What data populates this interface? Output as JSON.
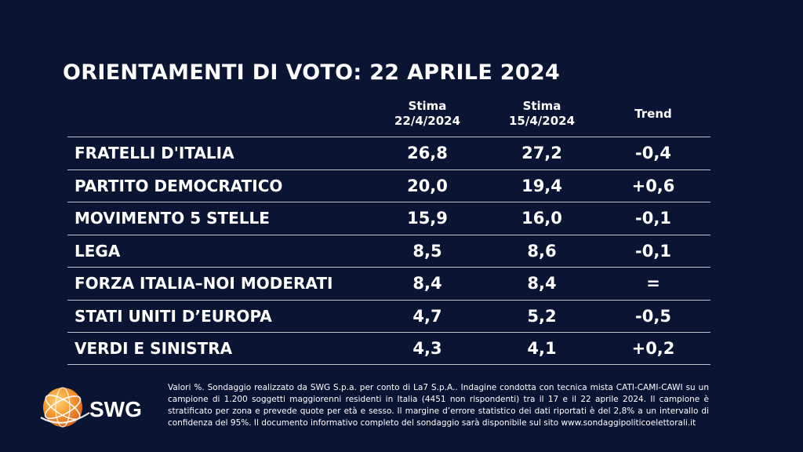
{
  "title": "ORIENTAMENTI DI VOTO: 22 APRILE 2024",
  "columns": {
    "current_line1": "Stima",
    "current_line2": "22/4/2024",
    "previous_line1": "Stima",
    "previous_line2": "15/4/2024",
    "trend": "Trend"
  },
  "rows": [
    {
      "party": "FRATELLI D'ITALIA",
      "current": "26,8",
      "previous": "27,2",
      "trend": "-0,4"
    },
    {
      "party": "PARTITO DEMOCRATICO",
      "current": "20,0",
      "previous": "19,4",
      "trend": "+0,6"
    },
    {
      "party": "MOVIMENTO 5 STELLE",
      "current": "15,9",
      "previous": "16,0",
      "trend": "-0,1"
    },
    {
      "party": "LEGA",
      "current": "8,5",
      "previous": "8,6",
      "trend": "-0,1"
    },
    {
      "party": "FORZA ITALIA–NOI MODERATI",
      "current": "8,4",
      "previous": "8,4",
      "trend": "="
    },
    {
      "party": "STATI UNITI D’EUROPA",
      "current": "4,7",
      "previous": "5,2",
      "trend": "-0,5"
    },
    {
      "party": "VERDI E SINISTRA",
      "current": "4,3",
      "previous": "4,1",
      "trend": "+0,2"
    }
  ],
  "logo": {
    "text": "SWG",
    "icon": "globe-logo-icon",
    "accent_color": "#f28a1e"
  },
  "footer": "Valori %. Sondaggio realizzato da SWG S.p.a. per conto di La7 S.p.A.. Indagine condotta con tecnica mista CATI-CAMI-CAWI su un campione di 1.200 soggetti maggiorenni residenti in Italia (4451 non rispondenti) tra il 17 e il 22 aprile 2024. Il campione è stratificato per zona e prevede quote per età e sesso. Il margine d’errore statistico dei dati riportati è del 2,8% a un intervallo di confidenza del 95%. Il documento informativo completo del sondaggio sarà disponibile sul sito www.sondaggipoliticoelettorali.it"
}
